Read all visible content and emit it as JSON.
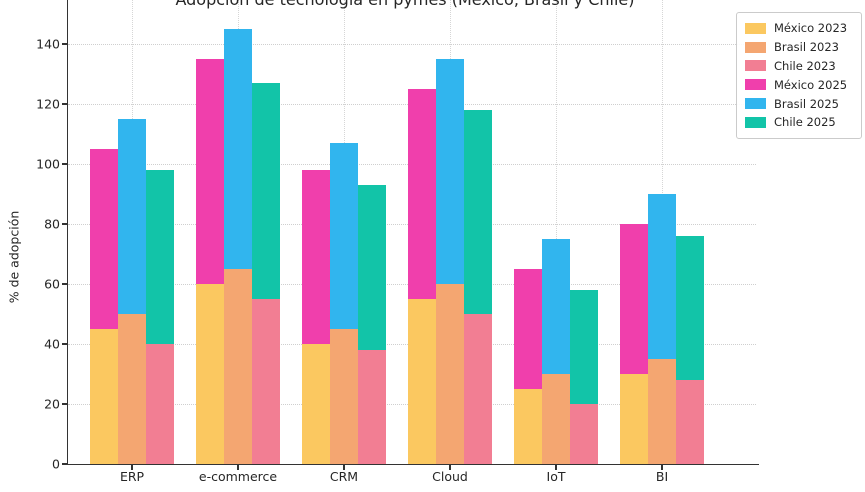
{
  "title": "Adopción de tecnología en pymes (México, Brasil y Chile)",
  "chart_data": {
    "type": "bar",
    "subtype": "grouped-stacked",
    "title": "Adopción de tecnología en pymes (México, Brasil y Chile)",
    "xlabel": "",
    "ylabel": "% de adopción",
    "categories": [
      "ERP",
      "e-commerce",
      "CRM",
      "Cloud",
      "IoT",
      "BI"
    ],
    "yticks": [
      0,
      20,
      40,
      60,
      80,
      100,
      120,
      140
    ],
    "ylim_visible": [
      0,
      155
    ],
    "grid": true,
    "legend_position": "upper right",
    "groups": [
      {
        "name": "México",
        "color_2023": "#FBC860",
        "color_2025": "#F03FAC",
        "values_2023": [
          45,
          60,
          40,
          55,
          25,
          30
        ],
        "values_2025_segment": [
          60,
          75,
          58,
          70,
          40,
          50
        ],
        "stack_totals": [
          105,
          135,
          98,
          125,
          65,
          80
        ]
      },
      {
        "name": "Brasil",
        "color_2023": "#F4A671",
        "color_2025": "#31B5EE",
        "values_2023": [
          50,
          65,
          45,
          60,
          30,
          35
        ],
        "values_2025_segment": [
          65,
          80,
          62,
          75,
          45,
          55
        ],
        "stack_totals": [
          115,
          145,
          107,
          135,
          75,
          90
        ]
      },
      {
        "name": "Chile",
        "color_2023": "#F27E93",
        "color_2025": "#12C4A8",
        "values_2023": [
          40,
          55,
          38,
          50,
          20,
          28
        ],
        "values_2025_segment": [
          58,
          72,
          55,
          68,
          38,
          48
        ],
        "stack_totals": [
          98,
          127,
          93,
          118,
          58,
          76
        ]
      }
    ],
    "legend": [
      {
        "label": "México 2023",
        "color": "#FBC860"
      },
      {
        "label": "Brasil 2023",
        "color": "#F4A671"
      },
      {
        "label": "Chile 2023",
        "color": "#F27E93"
      },
      {
        "label": "México 2025",
        "color": "#F03FAC"
      },
      {
        "label": "Brasil 2025",
        "color": "#31B5EE"
      },
      {
        "label": "Chile 2025",
        "color": "#12C4A8"
      }
    ]
  }
}
